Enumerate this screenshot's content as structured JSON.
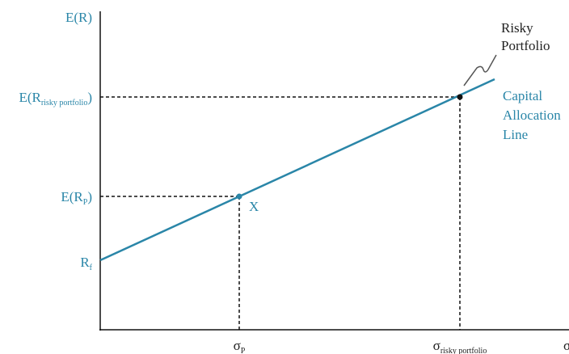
{
  "y_axis": {
    "title": "E(R)"
  },
  "y_labels": [
    {
      "base": "E(R",
      "sub": "risky portfolio",
      "close": ")"
    },
    {
      "base": "E(R",
      "sub": "P",
      "close": ")"
    },
    {
      "base": "R",
      "sub": "f"
    }
  ],
  "x_labels": [
    {
      "base": "σ",
      "sub": "P"
    },
    {
      "base": "σ",
      "sub": "risky portfolio"
    }
  ],
  "x_axis": {
    "title": "σ"
  },
  "points": [
    {
      "label": "X"
    }
  ],
  "annotations": {
    "risky_portfolio": [
      "Risky",
      "Portfolio"
    ],
    "line": [
      "Capital",
      "Allocation",
      "Line"
    ]
  }
}
